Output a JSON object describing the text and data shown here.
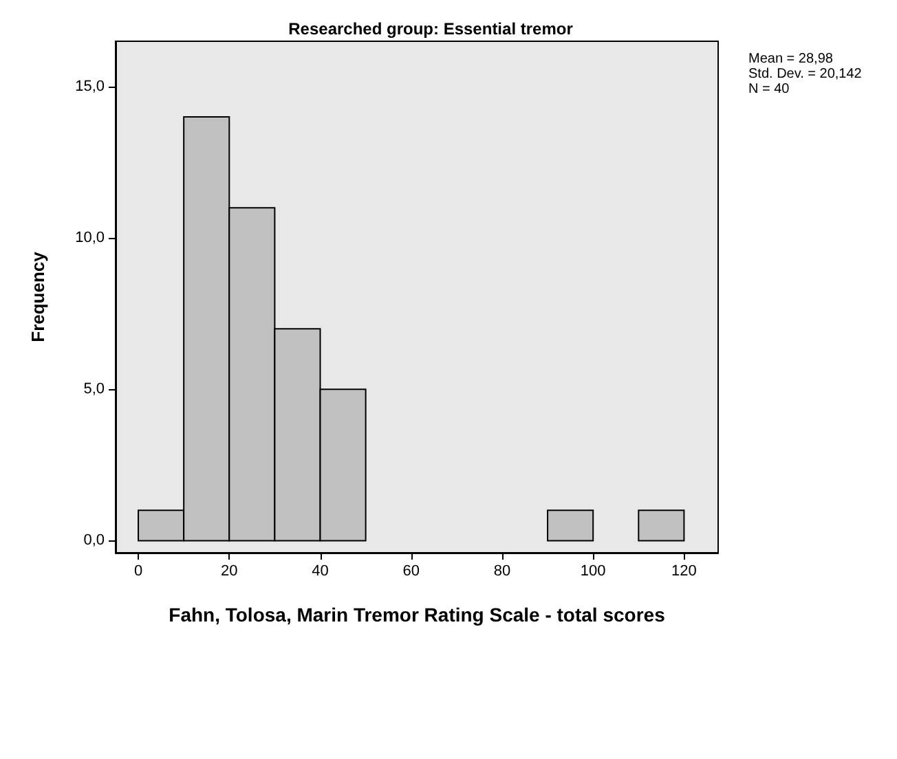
{
  "chart_data": {
    "type": "histogram",
    "title": "Researched group: Essential tremor",
    "xlabel": "Fahn, Tolosa, Marin Tremor Rating Scale - total scores",
    "ylabel": "Frequency",
    "bins": [
      0,
      10,
      20,
      30,
      40,
      50,
      60,
      70,
      80,
      90,
      100,
      110,
      120
    ],
    "values": [
      1,
      14,
      11,
      7,
      5,
      0,
      0,
      0,
      0,
      1,
      0,
      1
    ],
    "color": "#c0c0c0",
    "xlim": [
      -5,
      127.5
    ],
    "ylim": [
      -0.4,
      16.5
    ],
    "xticks": [
      0,
      20,
      40,
      60,
      80,
      100,
      120
    ],
    "yticks": [
      {
        "value": 0,
        "label": "0,0"
      },
      {
        "value": 5,
        "label": "5,0"
      },
      {
        "value": 10,
        "label": "10,0"
      },
      {
        "value": 15,
        "label": "15,0"
      }
    ],
    "annotations": [
      "Mean = 28,98",
      "Std. Dev. = 20,142",
      "N = 40"
    ],
    "grid": false
  }
}
